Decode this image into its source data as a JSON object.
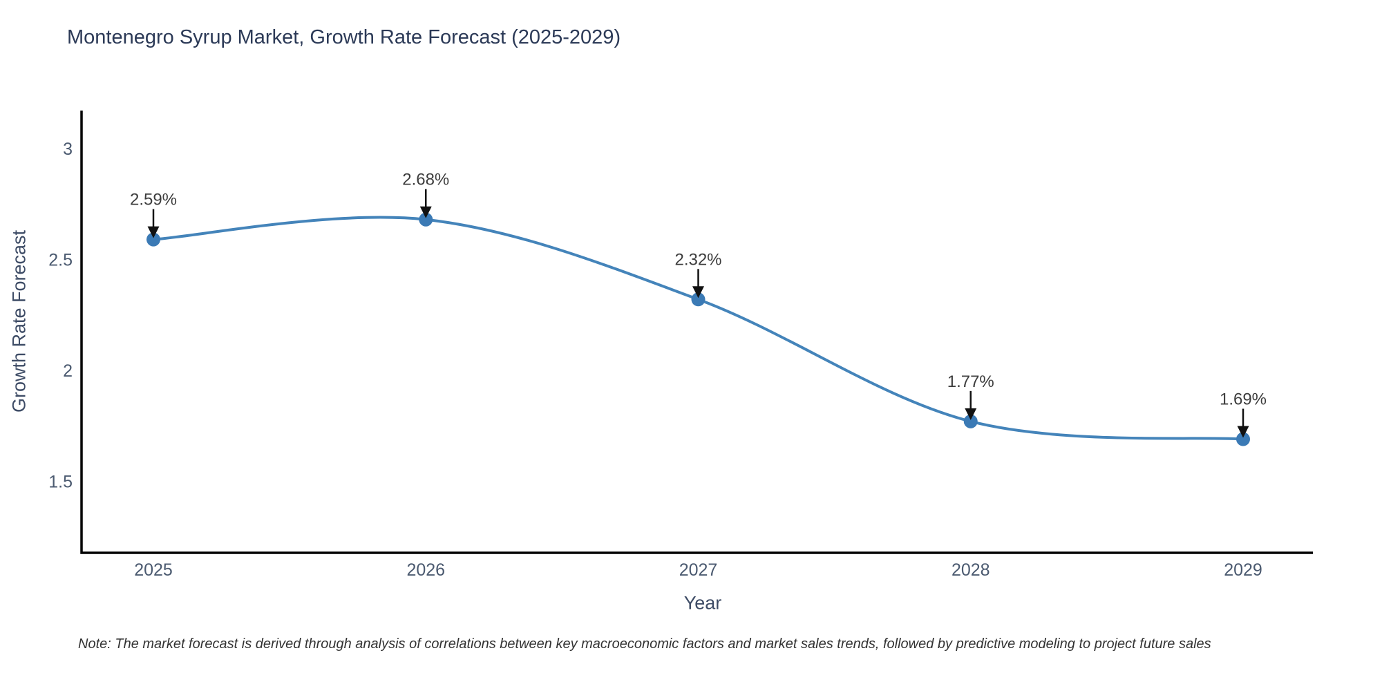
{
  "title": "Montenegro Syrup Market, Growth Rate Forecast (2025-2029)",
  "note": "Note: The market forecast is derived through analysis of correlations between key macroeconomic factors and market sales trends, followed by predictive modeling to project future sales",
  "colors": {
    "line": "#4484ba",
    "marker": "#3b7ab5",
    "axis_line": "#000000",
    "title_text": "#2c3a57",
    "axis_title_text": "#3e4c66",
    "tick_text": "#4b5a70",
    "annotation_text": "#3d3d3d",
    "annotation_arrow": "#111111",
    "background": "#ffffff"
  },
  "chart_data": {
    "type": "line",
    "line_shape": "spline",
    "title": "Montenegro Syrup Market, Growth Rate Forecast (2025-2029)",
    "xlabel": "Year",
    "ylabel": "Growth Rate Forecast",
    "x": [
      2025,
      2026,
      2027,
      2028,
      2029
    ],
    "values": [
      2.59,
      2.68,
      2.32,
      1.77,
      1.69
    ],
    "point_labels": [
      "2.59%",
      "2.68%",
      "2.32%",
      "1.77%",
      "1.69%"
    ],
    "yticks": [
      3,
      2.5,
      2,
      1.5
    ],
    "ylim": [
      1.18,
      3.17
    ],
    "xlim": [
      2024.7,
      2029.3
    ],
    "grid": false,
    "legend": false,
    "annotation_style": "black arrow pointing down to each data point"
  }
}
